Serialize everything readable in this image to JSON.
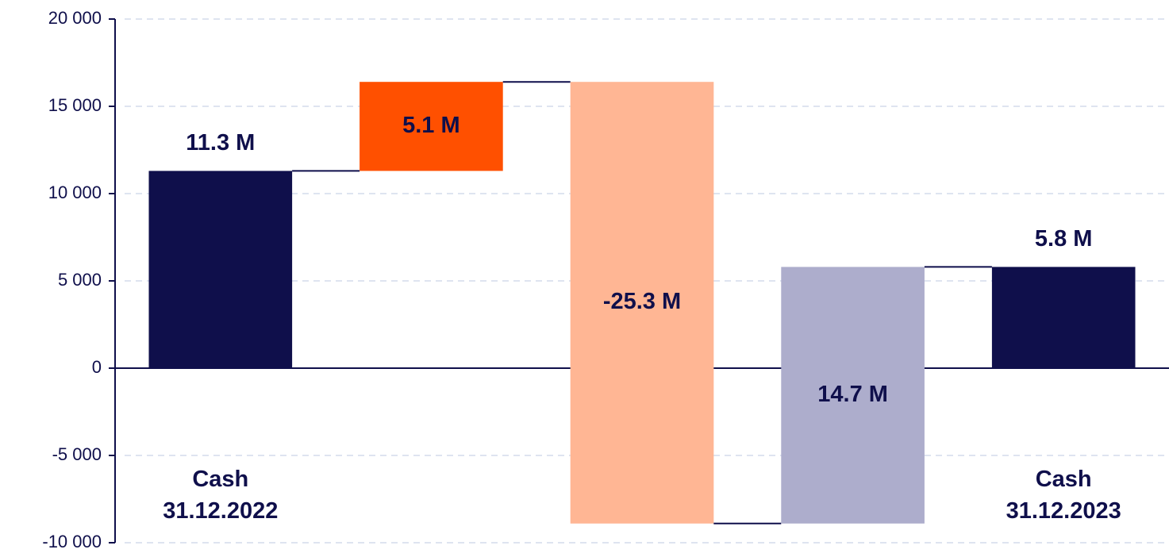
{
  "chart_data": {
    "type": "waterfall",
    "categories": [
      "Cash\n31.12.2022",
      null,
      null,
      null,
      "Cash\n31.12.2023"
    ],
    "values": [
      11300,
      5100,
      -25300,
      14700,
      5800
    ],
    "value_labels": [
      "11.3 M",
      "5.1 M",
      "-25.3 M",
      "14.7 M",
      "5.8 M"
    ],
    "measures": [
      "total",
      "relative",
      "relative",
      "relative",
      "total"
    ],
    "colors": [
      "#0f0f4b",
      "#ff5000",
      "#ffb694",
      "#adadcc",
      "#0f0f4b"
    ],
    "ylim": [
      -10000,
      20000
    ],
    "yticks": [
      {
        "value": -10000,
        "label": "-10 000"
      },
      {
        "value": -5000,
        "label": "-5 000"
      },
      0,
      {
        "value": 5000,
        "label": "5 000"
      },
      {
        "value": 10000,
        "label": "10 000"
      },
      {
        "value": 15000,
        "label": "15 000"
      },
      {
        "value": 20000,
        "label": "20 000"
      }
    ],
    "grid": true
  }
}
